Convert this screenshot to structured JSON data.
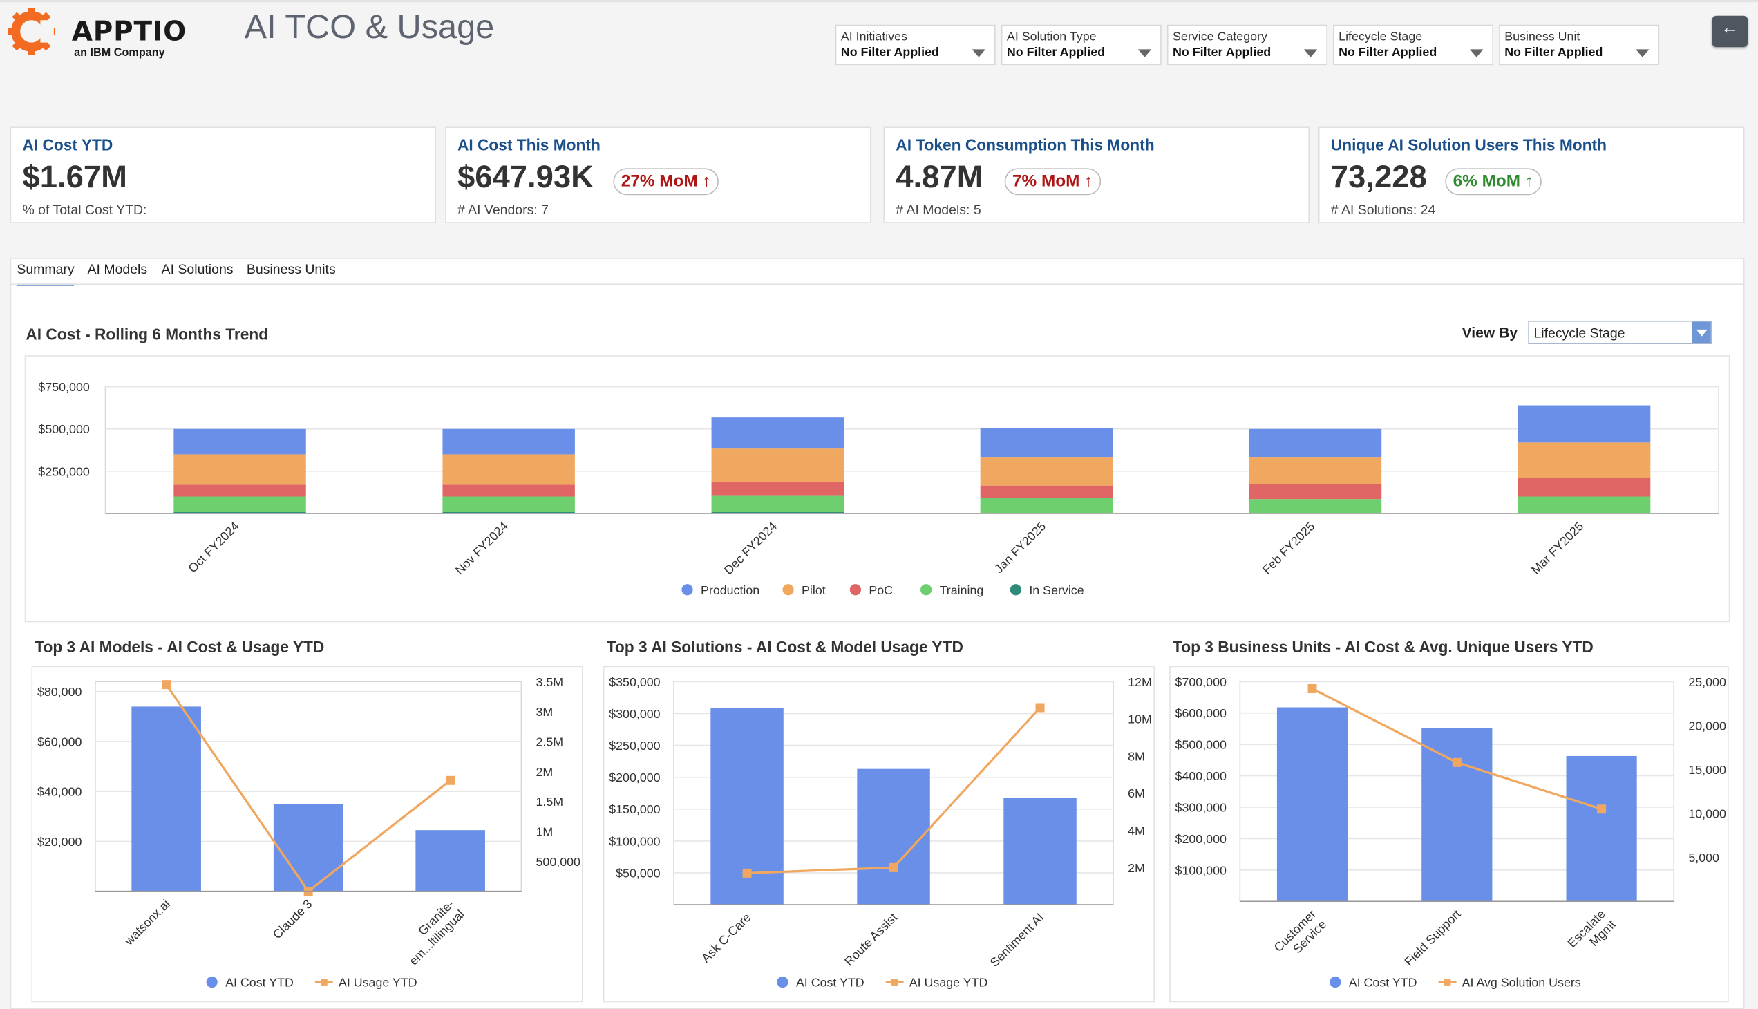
{
  "header": {
    "logo_text": "APPTIO",
    "logo_sub": "an IBM Company",
    "title": "AI TCO & Usage"
  },
  "filters": [
    {
      "label": "AI Initiatives",
      "value": "No Filter Applied"
    },
    {
      "label": "AI Solution Type",
      "value": "No Filter Applied"
    },
    {
      "label": "Service Category",
      "value": "No Filter Applied"
    },
    {
      "label": "Lifecycle Stage",
      "value": "No Filter Applied"
    },
    {
      "label": "Business Unit",
      "value": "No Filter Applied"
    }
  ],
  "kpis": [
    {
      "title": "AI Cost YTD",
      "value": "$1.67M",
      "sub": "% of Total Cost YTD:",
      "mom": "",
      "trend": ""
    },
    {
      "title": "AI Cost This Month",
      "value": "$647.93K",
      "sub": "# AI Vendors: 7",
      "mom": "27% MoM",
      "trend": "up-red"
    },
    {
      "title": "AI Token Consumption This Month",
      "value": "4.87M",
      "sub": "# AI Models: 5",
      "mom": "7% MoM",
      "trend": "up-red"
    },
    {
      "title": "Unique AI Solution Users This Month",
      "value": "73,228",
      "sub": "# AI Solutions: 24",
      "mom": "6% MoM",
      "trend": "up-green"
    }
  ],
  "tabs": [
    "Summary",
    "AI Models",
    "AI Solutions",
    "Business Units"
  ],
  "active_tab": "Summary",
  "trend_section": {
    "title": "AI Cost - Rolling 6 Months Trend",
    "view_by_label": "View By",
    "view_by_value": "Lifecycle Stage"
  },
  "colors": {
    "production": "#6a8fe8",
    "pilot": "#f0a860",
    "poc": "#e06666",
    "training": "#6dcf6d",
    "in_service": "#2e8b7a",
    "line": "#f0a860",
    "kpi_title": "#1a4f8a"
  },
  "chart_data": [
    {
      "type": "bar",
      "stacked": true,
      "title": "AI Cost - Rolling 6 Months Trend",
      "categories": [
        "Oct FY2024",
        "Nov FY2024",
        "Dec FY2024",
        "Jan FY2025",
        "Feb FY2025",
        "Mar FY2025"
      ],
      "y_ticks": [
        "$250,000",
        "$500,000",
        "$750,000"
      ],
      "ylim": [
        0,
        750000
      ],
      "grid": true,
      "legend_position": "bottom",
      "series": [
        {
          "name": "In Service",
          "values": [
            8000,
            8000,
            8000,
            0,
            0,
            0
          ]
        },
        {
          "name": "Training",
          "values": [
            92000,
            92000,
            100000,
            90000,
            85000,
            100000
          ]
        },
        {
          "name": "PoC",
          "values": [
            70000,
            70000,
            80000,
            75000,
            90000,
            110000
          ]
        },
        {
          "name": "Pilot",
          "values": [
            180000,
            180000,
            200000,
            170000,
            160000,
            210000
          ]
        },
        {
          "name": "Production",
          "values": [
            150000,
            150000,
            180000,
            170000,
            165000,
            220000
          ]
        }
      ],
      "legend": [
        "Production",
        "Pilot",
        "PoC",
        "Training",
        "In Service"
      ]
    },
    {
      "type": "bar",
      "title": "Top 3 AI Models - AI Cost & Usage YTD",
      "categories": [
        "watsonx.ai",
        "Claude 3",
        "Granite-em...ltilingual"
      ],
      "y_ticks": [
        "$20,000",
        "$40,000",
        "$60,000",
        "$80,000"
      ],
      "ylim": [
        0,
        84000
      ],
      "y2_ticks": [
        "500,000",
        "1M",
        "1.5M",
        "2M",
        "2.5M",
        "3M",
        "3.5M"
      ],
      "y2lim": [
        0,
        3500000
      ],
      "grid": true,
      "legend_position": "bottom",
      "series": [
        {
          "name": "AI Cost YTD",
          "type": "bar",
          "values": [
            74000,
            35000,
            24500
          ]
        },
        {
          "name": "AI Usage YTD",
          "type": "line",
          "values": [
            3450000,
            0,
            1850000
          ]
        }
      ]
    },
    {
      "type": "bar",
      "title": "Top 3 AI Solutions - AI Cost & Model Usage YTD",
      "categories": [
        "Ask C-Care",
        "Route Assist",
        "Sentiment AI"
      ],
      "y_ticks": [
        "$50,000",
        "$100,000",
        "$150,000",
        "$200,000",
        "$250,000",
        "$300,000",
        "$350,000"
      ],
      "ylim": [
        0,
        350000
      ],
      "y2_ticks": [
        "2M",
        "4M",
        "6M",
        "8M",
        "10M",
        "12M"
      ],
      "y2lim": [
        0,
        12000000
      ],
      "grid": true,
      "legend_position": "bottom",
      "series": [
        {
          "name": "AI Cost YTD",
          "type": "bar",
          "values": [
            308000,
            213000,
            168000
          ]
        },
        {
          "name": "AI Usage YTD",
          "type": "line",
          "values": [
            1700000,
            2000000,
            10600000
          ]
        }
      ]
    },
    {
      "type": "bar",
      "title": "Top 3 Business Units - AI Cost & Avg. Unique Users YTD",
      "categories": [
        "Customer Service",
        "Field Support",
        "Escalate Mgmt"
      ],
      "y_ticks": [
        "$100,000",
        "$200,000",
        "$300,000",
        "$400,000",
        "$500,000",
        "$600,000",
        "$700,000"
      ],
      "ylim": [
        0,
        700000
      ],
      "y2_ticks": [
        "5,000",
        "10,000",
        "15,000",
        "20,000",
        "25,000"
      ],
      "y2lim": [
        0,
        25000
      ],
      "grid": true,
      "legend_position": "bottom",
      "series": [
        {
          "name": "AI Cost YTD",
          "type": "bar",
          "values": [
            618000,
            552000,
            463000
          ]
        },
        {
          "name": "AI Avg Solution Users",
          "type": "line",
          "values": [
            24200,
            15800,
            10500
          ]
        }
      ]
    }
  ]
}
